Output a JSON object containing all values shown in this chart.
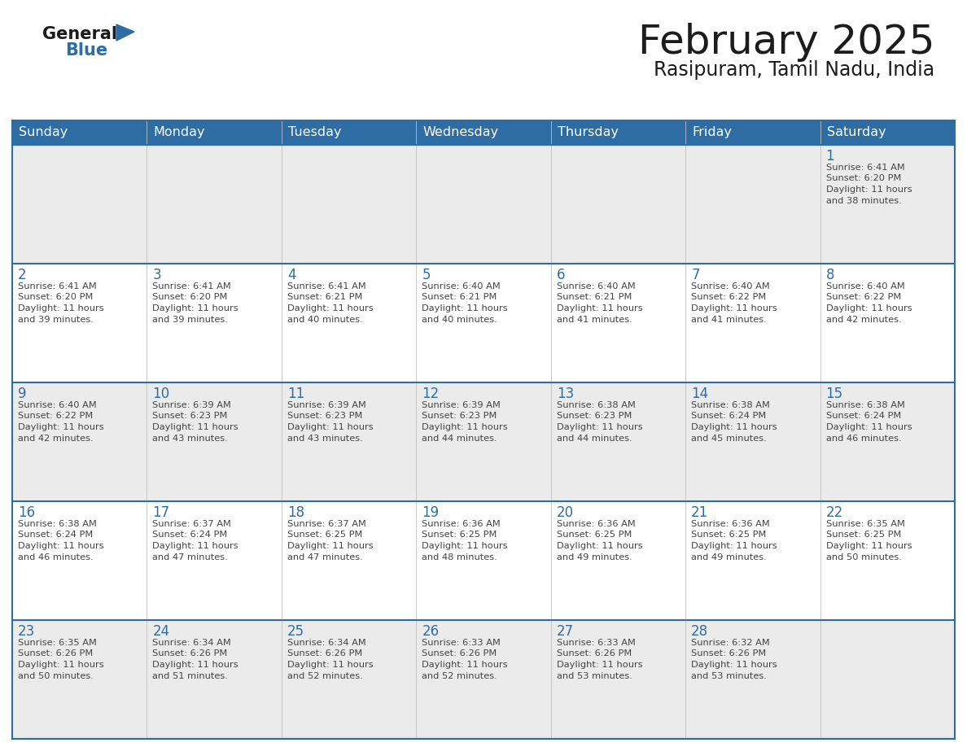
{
  "title": "February 2025",
  "subtitle": "Rasipuram, Tamil Nadu, India",
  "days_of_week": [
    "Sunday",
    "Monday",
    "Tuesday",
    "Wednesday",
    "Thursday",
    "Friday",
    "Saturday"
  ],
  "header_bg": "#2E6DA4",
  "header_text": "#FFFFFF",
  "row_bg": [
    "#EBEBEB",
    "#FFFFFF",
    "#EBEBEB",
    "#FFFFFF",
    "#EBEBEB"
  ],
  "divider_color": "#2E6DA4",
  "vert_divider_color": "#C0C0C0",
  "text_color": "#444444",
  "day_num_color": "#2E6DA4",
  "calendar": [
    [
      null,
      null,
      null,
      null,
      null,
      null,
      1
    ],
    [
      2,
      3,
      4,
      5,
      6,
      7,
      8
    ],
    [
      9,
      10,
      11,
      12,
      13,
      14,
      15
    ],
    [
      16,
      17,
      18,
      19,
      20,
      21,
      22
    ],
    [
      23,
      24,
      25,
      26,
      27,
      28,
      null
    ]
  ],
  "sunrise": {
    "1": "6:41 AM",
    "2": "6:41 AM",
    "3": "6:41 AM",
    "4": "6:41 AM",
    "5": "6:40 AM",
    "6": "6:40 AM",
    "7": "6:40 AM",
    "8": "6:40 AM",
    "9": "6:40 AM",
    "10": "6:39 AM",
    "11": "6:39 AM",
    "12": "6:39 AM",
    "13": "6:38 AM",
    "14": "6:38 AM",
    "15": "6:38 AM",
    "16": "6:38 AM",
    "17": "6:37 AM",
    "18": "6:37 AM",
    "19": "6:36 AM",
    "20": "6:36 AM",
    "21": "6:36 AM",
    "22": "6:35 AM",
    "23": "6:35 AM",
    "24": "6:34 AM",
    "25": "6:34 AM",
    "26": "6:33 AM",
    "27": "6:33 AM",
    "28": "6:32 AM"
  },
  "sunset": {
    "1": "6:20 PM",
    "2": "6:20 PM",
    "3": "6:20 PM",
    "4": "6:21 PM",
    "5": "6:21 PM",
    "6": "6:21 PM",
    "7": "6:22 PM",
    "8": "6:22 PM",
    "9": "6:22 PM",
    "10": "6:23 PM",
    "11": "6:23 PM",
    "12": "6:23 PM",
    "13": "6:23 PM",
    "14": "6:24 PM",
    "15": "6:24 PM",
    "16": "6:24 PM",
    "17": "6:24 PM",
    "18": "6:25 PM",
    "19": "6:25 PM",
    "20": "6:25 PM",
    "21": "6:25 PM",
    "22": "6:25 PM",
    "23": "6:26 PM",
    "24": "6:26 PM",
    "25": "6:26 PM",
    "26": "6:26 PM",
    "27": "6:26 PM",
    "28": "6:26 PM"
  },
  "daylight": {
    "1": "11 hours and 38 minutes.",
    "2": "11 hours and 39 minutes.",
    "3": "11 hours and 39 minutes.",
    "4": "11 hours and 40 minutes.",
    "5": "11 hours and 40 minutes.",
    "6": "11 hours and 41 minutes.",
    "7": "11 hours and 41 minutes.",
    "8": "11 hours and 42 minutes.",
    "9": "11 hours and 42 minutes.",
    "10": "11 hours and 43 minutes.",
    "11": "11 hours and 43 minutes.",
    "12": "11 hours and 44 minutes.",
    "13": "11 hours and 44 minutes.",
    "14": "11 hours and 45 minutes.",
    "15": "11 hours and 46 minutes.",
    "16": "11 hours and 46 minutes.",
    "17": "11 hours and 47 minutes.",
    "18": "11 hours and 47 minutes.",
    "19": "11 hours and 48 minutes.",
    "20": "11 hours and 49 minutes.",
    "21": "11 hours and 49 minutes.",
    "22": "11 hours and 50 minutes.",
    "23": "11 hours and 50 minutes.",
    "24": "11 hours and 51 minutes.",
    "25": "11 hours and 52 minutes.",
    "26": "11 hours and 52 minutes.",
    "27": "11 hours and 53 minutes.",
    "28": "11 hours and 53 minutes."
  }
}
